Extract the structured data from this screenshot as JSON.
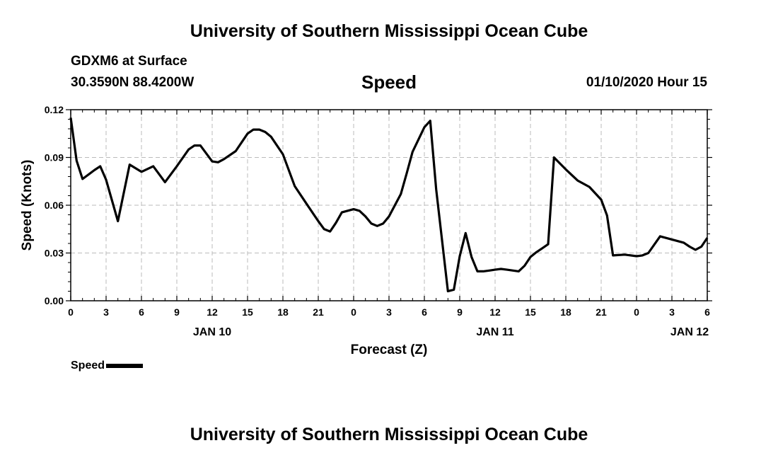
{
  "header": {
    "title": "University of Southern Mississippi Ocean Cube",
    "station": "GDXM6 at Surface",
    "location": "30.3590N 88.4200W",
    "variable": "Speed",
    "datetime": "01/10/2020 Hour 15"
  },
  "footer": {
    "title": "University of Southern Mississippi Ocean Cube"
  },
  "legend": {
    "label": "Speed",
    "color": "#000000"
  },
  "chart_data": {
    "type": "line",
    "title": "Speed",
    "xlabel": "Forecast (Z)",
    "ylabel": "Speed (Knots)",
    "xlim": [
      0,
      54
    ],
    "ylim": [
      0,
      0.12
    ],
    "grid": true,
    "legend_position": "bottom-left",
    "x_tick_labels": [
      "0",
      "3",
      "6",
      "9",
      "12",
      "15",
      "18",
      "21",
      "0",
      "3",
      "6",
      "9",
      "12",
      "15",
      "18",
      "21",
      "0",
      "3",
      "6"
    ],
    "y_tick_labels": [
      "0.00",
      "0.03",
      "0.06",
      "0.09",
      "0.12"
    ],
    "date_labels": [
      {
        "label": "JAN 10",
        "x": 12
      },
      {
        "label": "JAN 11",
        "x": 36
      },
      {
        "label": "JAN 12",
        "x": 52.5
      }
    ],
    "series": [
      {
        "name": "Speed",
        "color": "#000000",
        "x": [
          0,
          0.5,
          1,
          2,
          2.5,
          3,
          4,
          5,
          6,
          7,
          8,
          9,
          10,
          10.5,
          11,
          12,
          12.5,
          13,
          14,
          15,
          15.5,
          16,
          16.5,
          17,
          18,
          19,
          20,
          21,
          21.5,
          22,
          22.5,
          23,
          24,
          24.5,
          25,
          25.5,
          26,
          26.5,
          27,
          28,
          28.5,
          29,
          30,
          30.5,
          31,
          32,
          32.5,
          33,
          33.5,
          34,
          34.5,
          35,
          35.5,
          36,
          36.5,
          37,
          38,
          38.5,
          39,
          39.5,
          40,
          40.5,
          41,
          42,
          43,
          44,
          45,
          45.5,
          46,
          47,
          48,
          48.5,
          49,
          50,
          51,
          52,
          52.5,
          53,
          53.5,
          54
        ],
        "y": [
          0.115,
          0.088,
          0.0765,
          0.082,
          0.0845,
          0.076,
          0.05,
          0.0855,
          0.081,
          0.0845,
          0.0745,
          0.0845,
          0.095,
          0.0975,
          0.0975,
          0.0875,
          0.087,
          0.089,
          0.094,
          0.105,
          0.1075,
          0.1075,
          0.106,
          0.103,
          0.092,
          0.072,
          0.061,
          0.05,
          0.045,
          0.0435,
          0.049,
          0.0555,
          0.0575,
          0.0565,
          0.053,
          0.0485,
          0.047,
          0.0485,
          0.053,
          0.067,
          0.08,
          0.0935,
          0.109,
          0.113,
          0.07,
          0.006,
          0.007,
          0.028,
          0.0425,
          0.0275,
          0.0185,
          0.0185,
          0.019,
          0.0195,
          0.02,
          0.0195,
          0.0185,
          0.022,
          0.0275,
          0.0305,
          0.033,
          0.0355,
          0.09,
          0.0825,
          0.0755,
          0.0715,
          0.0635,
          0.0535,
          0.0285,
          0.029,
          0.028,
          0.0285,
          0.03,
          0.0405,
          0.0385,
          0.0365,
          0.034,
          0.032,
          0.034,
          0.0395
        ]
      }
    ]
  }
}
